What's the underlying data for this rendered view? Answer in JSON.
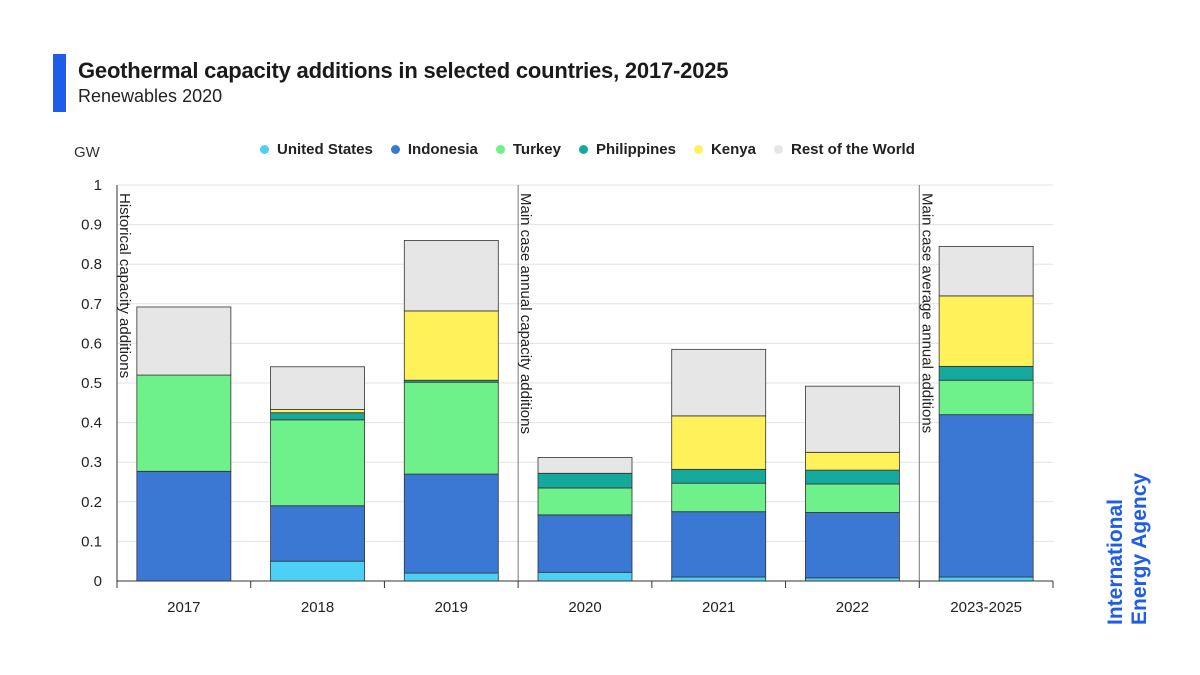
{
  "header": {
    "title": "Geothermal capacity additions in selected countries, 2017-2025",
    "subtitle": "Renewables 2020"
  },
  "brand": {
    "logo_line1": "International",
    "logo_line2": "Energy Agency",
    "color": "#1f5ce8"
  },
  "chart_data": {
    "type": "bar",
    "stacked": true,
    "title": "Geothermal capacity additions in selected countries, 2017-2025",
    "subtitle": "Renewables 2020",
    "ylabel": "GW",
    "ylim": [
      0,
      1
    ],
    "yticks": [
      "0",
      "0.1",
      "0.2",
      "0.3",
      "0.4",
      "0.5",
      "0.6",
      "0.7",
      "0.8",
      "0.9",
      "1"
    ],
    "grid": true,
    "legend_position": "top",
    "categories": [
      "2017",
      "2018",
      "2019",
      "2020",
      "2021",
      "2022",
      "2023-2025"
    ],
    "series": [
      {
        "name": "United States",
        "color": "#4dd0f5",
        "values": [
          0,
          0.05,
          0.02,
          0.022,
          0.01,
          0.008,
          0.01
        ]
      },
      {
        "name": "Indonesia",
        "color": "#3a78d4",
        "values": [
          0.277,
          0.14,
          0.25,
          0.145,
          0.165,
          0.165,
          0.41
        ]
      },
      {
        "name": "Turkey",
        "color": "#6ef08a",
        "values": [
          0.243,
          0.217,
          0.232,
          0.068,
          0.072,
          0.072,
          0.087
        ]
      },
      {
        "name": "Philippines",
        "color": "#15a89d",
        "values": [
          0,
          0.018,
          0.005,
          0.037,
          0.035,
          0.035,
          0.035
        ]
      },
      {
        "name": "Kenya",
        "color": "#fff15a",
        "values": [
          0,
          0.008,
          0.175,
          0,
          0.135,
          0.045,
          0.178
        ]
      },
      {
        "name": "Rest of the World",
        "color": "#e6e6e6",
        "values": [
          0.172,
          0.108,
          0.178,
          0.04,
          0.168,
          0.167,
          0.125
        ]
      }
    ],
    "annotations": [
      {
        "text": "Historical capacity additions",
        "after_category_index": -1
      },
      {
        "text": "Main case annual capacity additions",
        "after_category_index": 2
      },
      {
        "text": "Main case average annual additions",
        "after_category_index": 5
      }
    ]
  }
}
